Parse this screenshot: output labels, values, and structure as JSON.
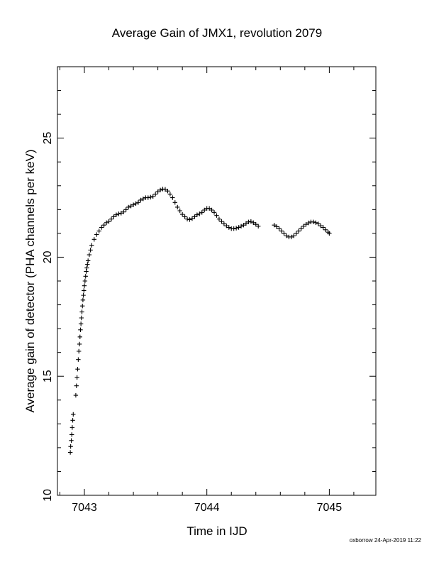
{
  "chart_data": {
    "type": "scatter",
    "title": "Average Gain of JMX1, revolution 2079",
    "xlabel": "Time in IJD",
    "ylabel": "Average gain of detector (PHA channels per keV)",
    "xlim": [
      7042.78,
      7045.38
    ],
    "ylim": [
      10,
      28
    ],
    "xticks": [
      7043,
      7044,
      7045
    ],
    "yticks": [
      10,
      15,
      20,
      25
    ],
    "xtick_labels": [
      "7043",
      "7044",
      "7045"
    ],
    "ytick_labels": [
      "10",
      "15",
      "20",
      "25"
    ],
    "marker": "plus",
    "color": "#000000",
    "series": [
      {
        "values": [
          [
            7042.885,
            11.8
          ],
          [
            7042.888,
            12.05
          ],
          [
            7042.893,
            12.3
          ],
          [
            7042.897,
            12.55
          ],
          [
            7042.901,
            12.85
          ],
          [
            7042.905,
            13.15
          ],
          [
            7042.909,
            13.4
          ],
          [
            7042.93,
            14.2
          ],
          [
            7042.935,
            14.6
          ],
          [
            7042.94,
            14.95
          ],
          [
            7042.945,
            15.3
          ],
          [
            7042.95,
            15.7
          ],
          [
            7042.955,
            16.05
          ],
          [
            7042.96,
            16.35
          ],
          [
            7042.964,
            16.65
          ],
          [
            7042.968,
            16.95
          ],
          [
            7042.972,
            17.2
          ],
          [
            7042.976,
            17.45
          ],
          [
            7042.98,
            17.7
          ],
          [
            7042.984,
            17.95
          ],
          [
            7042.988,
            18.2
          ],
          [
            7042.992,
            18.4
          ],
          [
            7042.996,
            18.6
          ],
          [
            7043.0,
            18.8
          ],
          [
            7043.005,
            19.0
          ],
          [
            7043.01,
            19.2
          ],
          [
            7043.015,
            19.4
          ],
          [
            7043.02,
            19.55
          ],
          [
            7043.025,
            19.7
          ],
          [
            7043.03,
            19.85
          ],
          [
            7043.04,
            20.1
          ],
          [
            7043.05,
            20.3
          ],
          [
            7043.06,
            20.5
          ],
          [
            7043.08,
            20.75
          ],
          [
            7043.1,
            20.95
          ],
          [
            7043.12,
            21.1
          ],
          [
            7043.14,
            21.25
          ],
          [
            7043.16,
            21.35
          ],
          [
            7043.18,
            21.45
          ],
          [
            7043.2,
            21.5
          ],
          [
            7043.22,
            21.6
          ],
          [
            7043.24,
            21.7
          ],
          [
            7043.26,
            21.78
          ],
          [
            7043.28,
            21.82
          ],
          [
            7043.3,
            21.85
          ],
          [
            7043.32,
            21.9
          ],
          [
            7043.34,
            22.0
          ],
          [
            7043.36,
            22.1
          ],
          [
            7043.38,
            22.15
          ],
          [
            7043.4,
            22.2
          ],
          [
            7043.42,
            22.25
          ],
          [
            7043.44,
            22.3
          ],
          [
            7043.46,
            22.4
          ],
          [
            7043.48,
            22.45
          ],
          [
            7043.5,
            22.5
          ],
          [
            7043.52,
            22.5
          ],
          [
            7043.54,
            22.52
          ],
          [
            7043.56,
            22.55
          ],
          [
            7043.58,
            22.65
          ],
          [
            7043.6,
            22.75
          ],
          [
            7043.62,
            22.82
          ],
          [
            7043.64,
            22.86
          ],
          [
            7043.66,
            22.85
          ],
          [
            7043.68,
            22.78
          ],
          [
            7043.7,
            22.65
          ],
          [
            7043.72,
            22.5
          ],
          [
            7043.74,
            22.3
          ],
          [
            7043.76,
            22.1
          ],
          [
            7043.78,
            21.95
          ],
          [
            7043.8,
            21.8
          ],
          [
            7043.82,
            21.7
          ],
          [
            7043.84,
            21.6
          ],
          [
            7043.86,
            21.58
          ],
          [
            7043.88,
            21.62
          ],
          [
            7043.9,
            21.7
          ],
          [
            7043.92,
            21.78
          ],
          [
            7043.94,
            21.82
          ],
          [
            7043.96,
            21.88
          ],
          [
            7043.98,
            21.98
          ],
          [
            7044.0,
            22.05
          ],
          [
            7044.02,
            22.05
          ],
          [
            7044.04,
            21.98
          ],
          [
            7044.06,
            21.88
          ],
          [
            7044.08,
            21.75
          ],
          [
            7044.1,
            21.6
          ],
          [
            7044.12,
            21.5
          ],
          [
            7044.14,
            21.4
          ],
          [
            7044.16,
            21.32
          ],
          [
            7044.18,
            21.25
          ],
          [
            7044.2,
            21.2
          ],
          [
            7044.22,
            21.2
          ],
          [
            7044.24,
            21.22
          ],
          [
            7044.26,
            21.25
          ],
          [
            7044.28,
            21.3
          ],
          [
            7044.3,
            21.35
          ],
          [
            7044.32,
            21.42
          ],
          [
            7044.34,
            21.48
          ],
          [
            7044.36,
            21.5
          ],
          [
            7044.38,
            21.45
          ],
          [
            7044.4,
            21.38
          ],
          [
            7044.42,
            21.3
          ],
          [
            7044.55,
            21.35
          ],
          [
            7044.57,
            21.28
          ],
          [
            7044.59,
            21.2
          ],
          [
            7044.61,
            21.1
          ],
          [
            7044.63,
            21.0
          ],
          [
            7044.65,
            20.9
          ],
          [
            7044.67,
            20.85
          ],
          [
            7044.69,
            20.85
          ],
          [
            7044.71,
            20.9
          ],
          [
            7044.73,
            21.0
          ],
          [
            7044.75,
            21.1
          ],
          [
            7044.77,
            21.2
          ],
          [
            7044.79,
            21.3
          ],
          [
            7044.81,
            21.38
          ],
          [
            7044.83,
            21.44
          ],
          [
            7044.85,
            21.48
          ],
          [
            7044.87,
            21.48
          ],
          [
            7044.89,
            21.45
          ],
          [
            7044.91,
            21.4
          ],
          [
            7044.93,
            21.32
          ],
          [
            7044.95,
            21.25
          ],
          [
            7044.97,
            21.15
          ],
          [
            7044.99,
            21.05
          ],
          [
            7045.0,
            21.0
          ]
        ]
      }
    ]
  },
  "footer": {
    "credit": "oxborrow 24-Apr-2019 11:22"
  }
}
